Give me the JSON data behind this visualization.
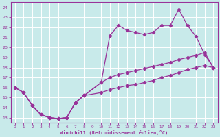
{
  "xlabel": "Windchill (Refroidissement éolien,°C)",
  "bg_color": "#c8eaea",
  "grid_color": "#ffffff",
  "line_color": "#993399",
  "xlim": [
    -0.5,
    23.5
  ],
  "ylim": [
    12.5,
    24.5
  ],
  "xticks": [
    0,
    1,
    2,
    3,
    4,
    5,
    6,
    7,
    8,
    9,
    10,
    11,
    12,
    13,
    14,
    15,
    16,
    17,
    18,
    19,
    20,
    21,
    22,
    23
  ],
  "yticks": [
    13,
    14,
    15,
    16,
    17,
    18,
    19,
    20,
    21,
    22,
    23,
    24
  ],
  "line1_x": [
    0,
    1,
    2,
    3,
    4,
    5,
    6,
    7,
    8,
    10,
    11,
    12,
    13,
    14,
    15,
    16,
    17,
    18,
    19,
    20,
    21,
    22,
    23
  ],
  "line1_y": [
    16,
    15.5,
    14.2,
    13.3,
    13.0,
    12.9,
    13.0,
    14.5,
    15.2,
    16.5,
    21.2,
    22.2,
    21.7,
    21.5,
    21.3,
    21.5,
    22.2,
    22.2,
    23.8,
    22.2,
    21.1,
    19.3,
    18.0
  ],
  "line2_x": [
    0,
    1,
    2,
    3,
    4,
    5,
    6,
    7,
    8,
    10,
    11,
    12,
    13,
    14,
    15,
    16,
    17,
    18,
    19,
    20,
    21,
    22,
    23
  ],
  "line2_y": [
    16,
    15.5,
    14.2,
    13.3,
    13.0,
    12.9,
    13.0,
    14.5,
    15.2,
    16.5,
    17.0,
    17.3,
    17.5,
    17.7,
    17.9,
    18.1,
    18.3,
    18.5,
    18.8,
    19.0,
    19.2,
    19.5,
    18.0
  ],
  "line3_x": [
    0,
    1,
    2,
    3,
    4,
    5,
    6,
    7,
    8,
    10,
    11,
    12,
    13,
    14,
    15,
    16,
    17,
    18,
    19,
    20,
    21,
    22,
    23
  ],
  "line3_y": [
    16,
    15.5,
    14.2,
    13.3,
    13.0,
    12.9,
    13.0,
    14.5,
    15.2,
    15.5,
    15.8,
    16.0,
    16.2,
    16.3,
    16.5,
    16.7,
    17.0,
    17.2,
    17.5,
    17.8,
    18.0,
    18.2,
    18.0
  ]
}
